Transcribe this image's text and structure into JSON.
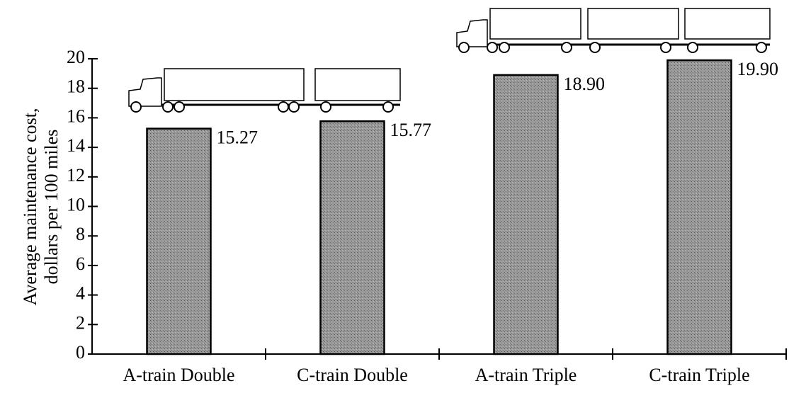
{
  "chart_data": {
    "type": "bar",
    "ylabel": [
      "Average maintenance cost,",
      "dollars per 100 miles"
    ],
    "categories": [
      "A-train Double",
      "C-train Double",
      "A-train Triple",
      "C-train Triple"
    ],
    "values": [
      15.27,
      15.77,
      18.9,
      19.9
    ],
    "value_labels": [
      "15.27",
      "15.77",
      "18.90",
      "19.90"
    ],
    "color": "#8a8a8a",
    "ylim": [
      0,
      20
    ],
    "yticks": [
      0,
      2,
      4,
      6,
      8,
      10,
      12,
      14,
      16,
      18,
      20
    ],
    "grid": false
  }
}
